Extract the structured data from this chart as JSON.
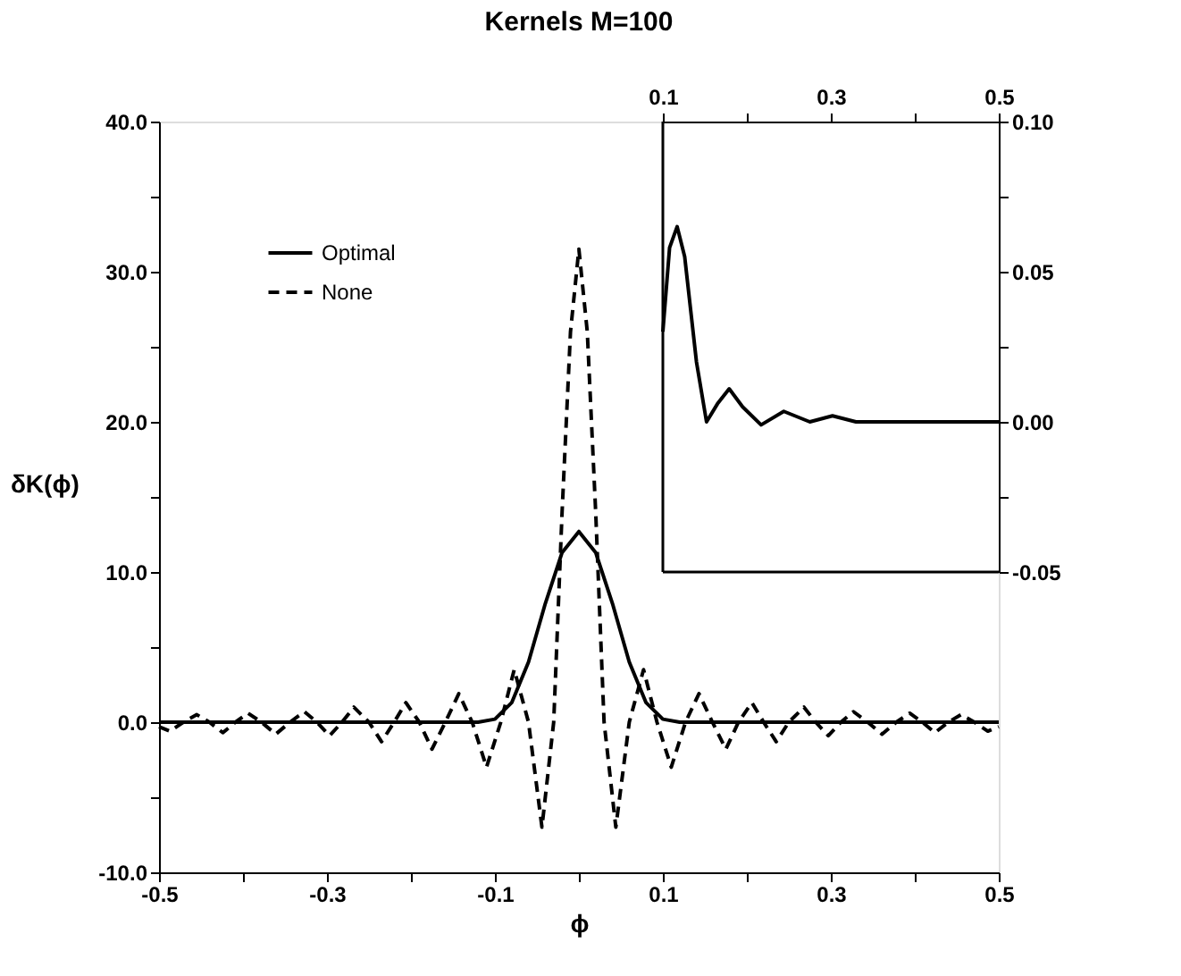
{
  "chart_data": [
    {
      "type": "line",
      "title": "Kernels M=100",
      "xlabel": "ϕ",
      "ylabel": "δK(ϕ)",
      "legend": "top left",
      "grid": false,
      "line_style": "solid",
      "marker": "none",
      "xlim": [
        -0.5,
        0.5
      ],
      "ylim": [
        -10,
        40
      ],
      "xticks": [
        -0.5,
        {
          "value": -0.4,
          "label": null
        },
        -0.3,
        {
          "value": -0.2,
          "label": null
        },
        -0.1,
        {
          "value": 0,
          "label": null
        },
        0.1,
        {
          "value": 0.2,
          "label": null
        },
        0.3,
        {
          "value": 0.4,
          "label": null
        },
        0.5
      ],
      "yticks": [
        {
          "value": -10,
          "label": "-10.0"
        },
        {
          "value": -5,
          "label": null
        },
        {
          "value": 0,
          "label": "0.0"
        },
        {
          "value": 5,
          "label": null
        },
        {
          "value": 10,
          "label": "10.0"
        },
        {
          "value": 15,
          "label": null
        },
        {
          "value": 20,
          "label": "20.0"
        },
        {
          "value": 25,
          "label": null
        },
        {
          "value": 30,
          "label": "30.0"
        },
        {
          "value": 35,
          "label": null
        },
        {
          "value": 40,
          "label": "40.0"
        }
      ],
      "series": [
        {
          "name": "Optimal",
          "color": "#000000",
          "line_style": "solid",
          "x": [
            -0.5,
            -0.12,
            -0.1,
            -0.08,
            -0.06,
            -0.04,
            -0.02,
            0,
            0.02,
            0.04,
            0.06,
            0.08,
            0.1,
            0.12,
            0.5
          ],
          "values": [
            0,
            0,
            0.2,
            1.3,
            4.0,
            7.9,
            11.3,
            12.7,
            11.3,
            7.9,
            4.0,
            1.3,
            0.2,
            0,
            0
          ]
        },
        {
          "name": "None",
          "color": "#000000",
          "line_style": "dashed",
          "x": [
            -0.5,
            -0.487,
            -0.471,
            -0.455,
            -0.44,
            -0.424,
            -0.409,
            -0.394,
            -0.378,
            -0.361,
            -0.344,
            -0.327,
            -0.312,
            -0.297,
            -0.282,
            -0.268,
            -0.25,
            -0.235,
            -0.22,
            -0.206,
            -0.19,
            -0.175,
            -0.159,
            -0.143,
            -0.127,
            -0.11,
            -0.093,
            -0.077,
            -0.06,
            -0.044,
            -0.03,
            -0.02,
            -0.01,
            0,
            0.01,
            0.02,
            0.03,
            0.044,
            0.06,
            0.077,
            0.093,
            0.11,
            0.127,
            0.143,
            0.159,
            0.175,
            0.19,
            0.206,
            0.22,
            0.235,
            0.25,
            0.268,
            0.282,
            0.297,
            0.312,
            0.327,
            0.344,
            0.361,
            0.378,
            0.394,
            0.409,
            0.424,
            0.44,
            0.455,
            0.471,
            0.487,
            0.5
          ],
          "values": [
            -0.3,
            -0.6,
            0,
            0.5,
            0,
            -0.7,
            0,
            0.6,
            0,
            -0.8,
            0,
            0.7,
            0,
            -0.9,
            0,
            1.0,
            0,
            -1.3,
            0,
            1.3,
            0,
            -1.8,
            0,
            1.9,
            0,
            -3.0,
            0,
            3.5,
            0,
            -7.0,
            0,
            14,
            26,
            31.5,
            26,
            14,
            0,
            -7.0,
            0,
            3.5,
            0,
            -3.0,
            0,
            1.9,
            0,
            -1.8,
            0,
            1.3,
            0,
            -1.3,
            0,
            1.0,
            0,
            -0.9,
            0,
            0.7,
            0,
            -0.8,
            0,
            0.6,
            0,
            -0.7,
            0,
            0.5,
            0,
            -0.6,
            -0.3
          ]
        }
      ]
    },
    {
      "type": "line",
      "grid": false,
      "line_style": "solid",
      "marker": "none",
      "xlim": [
        0.1,
        0.5
      ],
      "ylim": [
        -0.05,
        0.1
      ],
      "xticks": [
        0.1,
        {
          "value": 0.2,
          "label": null
        },
        0.3,
        {
          "value": 0.4,
          "label": null
        },
        0.5
      ],
      "yticks": [
        {
          "value": -0.05,
          "label": "-0.05"
        },
        {
          "value": -0.025,
          "label": null
        },
        {
          "value": 0,
          "label": "0.00"
        },
        {
          "value": 0.025,
          "label": null
        },
        {
          "value": 0.05,
          "label": "0.05"
        },
        {
          "value": 0.075,
          "label": null
        },
        {
          "value": 0.1,
          "label": "0.10"
        }
      ],
      "series": [
        {
          "color": "#000000",
          "x": [
            0.1,
            0.108,
            0.117,
            0.126,
            0.14,
            0.152,
            0.165,
            0.179,
            0.195,
            0.217,
            0.244,
            0.275,
            0.302,
            0.33,
            0.5
          ],
          "values": [
            0.03,
            0.058,
            0.065,
            0.055,
            0.02,
            0,
            0.006,
            0.011,
            0.005,
            -0.001,
            0.0035,
            0,
            0.002,
            0,
            0
          ]
        }
      ]
    }
  ]
}
